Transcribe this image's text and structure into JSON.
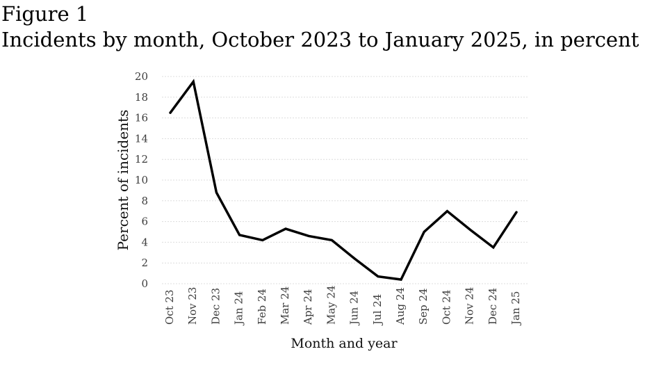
{
  "figure": {
    "label": "Figure 1",
    "title": "Incidents by month, October 2023 to January 2025, in percent"
  },
  "chart_data": {
    "type": "line",
    "title": "Figure 1",
    "subtitle": "Incidents by month, October 2023 to January 2025, in percent",
    "categories": [
      "Oct 23",
      "Nov 23",
      "Dec 23",
      "Jan 24",
      "Feb 24",
      "Mar 24",
      "Apr 24",
      "May 24",
      "Jun 24",
      "Jul 24",
      "Aug 24",
      "Sep 24",
      "Oct 24",
      "Nov 24",
      "Dec 24",
      "Jan 25"
    ],
    "values": [
      16.5,
      19.5,
      8.8,
      4.7,
      4.2,
      5.3,
      4.6,
      4.2,
      2.4,
      0.7,
      0.4,
      5.0,
      7.0,
      5.2,
      3.5,
      6.9
    ],
    "xlabel": "Month and year",
    "ylabel": "Percent of incidents",
    "ylim": [
      0,
      20
    ],
    "ytick_step": 2,
    "grid": "horizontal-dashed",
    "legend_position": "none",
    "line_color": "#000000",
    "grid_color": "#dcdcdc",
    "tick_label_color": "#3d3d3d"
  }
}
